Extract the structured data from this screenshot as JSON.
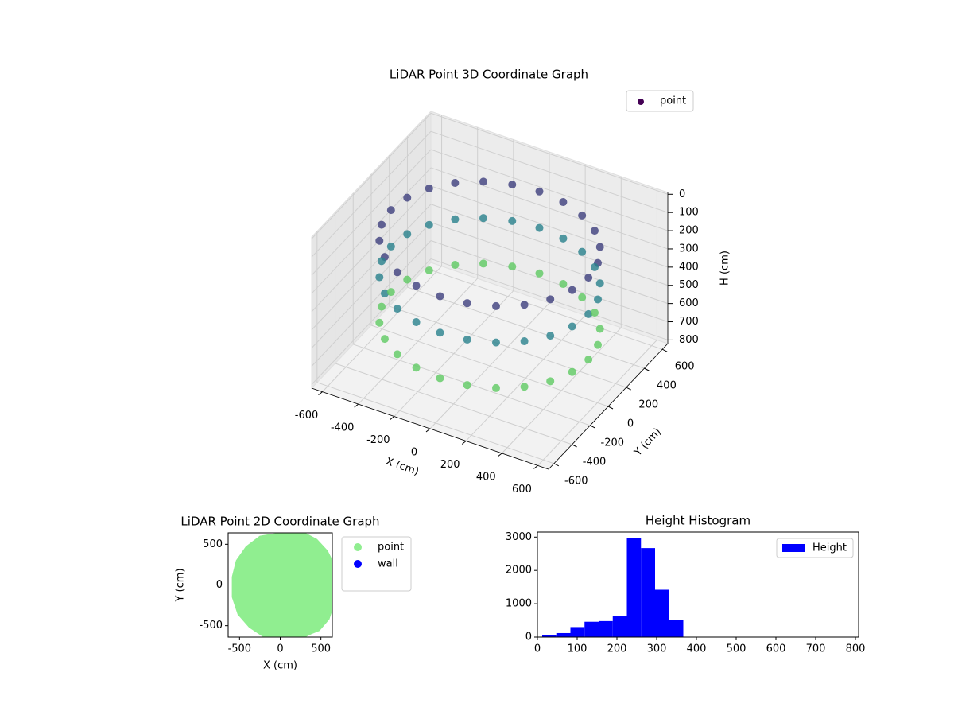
{
  "chart_data": [
    {
      "type": "scatter3d",
      "title": "LiDAR Point 3D Coordinate Graph",
      "xlabel": "X (cm)",
      "ylabel": "Y (cm)",
      "zlabel": "H (cm)",
      "xlim": [
        -660,
        660
      ],
      "ylim": [
        -660,
        660
      ],
      "zlim": [
        820,
        -10
      ],
      "xticks": [
        -600,
        -400,
        -200,
        0,
        200,
        400,
        600
      ],
      "yticks": [
        -600,
        -400,
        -200,
        0,
        200,
        400,
        600
      ],
      "zticks": [
        0,
        100,
        200,
        300,
        400,
        500,
        600,
        700,
        800
      ],
      "colormap": "viridis",
      "clim": [
        0,
        800
      ],
      "legend": "upper right",
      "grid": true,
      "series": [
        {
          "name": "point",
          "color": "#440154",
          "x": [
            550,
            531,
            476,
            389,
            275,
            142,
            0,
            -142,
            -275,
            -389,
            -476,
            -531,
            -550,
            -531,
            -476,
            -389,
            -275,
            -142,
            0,
            142,
            275,
            389,
            476,
            531,
            550,
            531,
            476,
            389,
            275,
            142,
            0,
            -142,
            -275,
            -389,
            -476,
            -531,
            -550,
            -531,
            -476,
            -389,
            -275,
            -142,
            0,
            142,
            275,
            389,
            476,
            531,
            550,
            531,
            476,
            389,
            275,
            142,
            0,
            -142,
            -275,
            -389,
            -476,
            -531,
            -550,
            -531,
            -476,
            -389,
            -275,
            -142,
            0,
            142,
            275,
            389,
            476,
            531
          ],
          "y": [
            0,
            142,
            275,
            389,
            476,
            531,
            550,
            531,
            476,
            389,
            275,
            142,
            0,
            -142,
            -275,
            -389,
            -476,
            -531,
            -550,
            -531,
            -476,
            -389,
            -275,
            -142,
            0,
            142,
            275,
            389,
            476,
            531,
            550,
            531,
            476,
            389,
            275,
            142,
            0,
            -142,
            -275,
            -389,
            -476,
            -531,
            -550,
            -531,
            -476,
            -389,
            -275,
            -142,
            0,
            142,
            275,
            389,
            476,
            531,
            550,
            531,
            476,
            389,
            275,
            142,
            0,
            -142,
            -275,
            -389,
            -476,
            -531,
            -550,
            -531,
            -476,
            -389,
            -275,
            -142
          ],
          "z": [
            150,
            150,
            150,
            150,
            150,
            150,
            150,
            150,
            150,
            150,
            150,
            150,
            150,
            150,
            150,
            150,
            150,
            150,
            150,
            150,
            150,
            150,
            150,
            150,
            350,
            350,
            350,
            350,
            350,
            350,
            350,
            350,
            350,
            350,
            350,
            350,
            350,
            350,
            350,
            350,
            350,
            350,
            350,
            350,
            350,
            350,
            350,
            350,
            600,
            600,
            600,
            600,
            600,
            600,
            600,
            600,
            600,
            600,
            600,
            600,
            600,
            600,
            600,
            600,
            600,
            600,
            600,
            600,
            600,
            600,
            600,
            600
          ]
        }
      ]
    },
    {
      "type": "scatter",
      "title": "LiDAR Point 2D Coordinate Graph",
      "xlabel": "X (cm)",
      "ylabel": "Y (cm)",
      "xlim": [
        -640,
        640
      ],
      "ylim": [
        -640,
        640
      ],
      "xticks": [
        -500,
        0,
        500
      ],
      "yticks": [
        -500,
        0,
        500
      ],
      "legend": "outside right",
      "series": [
        {
          "name": "point",
          "color": "#90ee90",
          "x": [
            0,
            300,
            450,
            580,
            640,
            640,
            600,
            480,
            380,
            300,
            -200,
            -380,
            -520,
            -590,
            -590,
            -540,
            -420,
            -250
          ],
          "y": [
            640,
            640,
            560,
            420,
            300,
            -300,
            -420,
            -560,
            -600,
            -640,
            -640,
            -520,
            -360,
            -150,
            100,
            300,
            470,
            600
          ]
        },
        {
          "name": "wall",
          "color": "#0000ff",
          "x": [],
          "y": []
        }
      ]
    },
    {
      "type": "histogram",
      "title": "Height Histogram",
      "xlim": [
        0,
        808
      ],
      "ylim": [
        0,
        3150
      ],
      "xticks": [
        0,
        100,
        200,
        300,
        400,
        500,
        600,
        700,
        800
      ],
      "yticks": [
        0,
        1000,
        2000,
        3000
      ],
      "legend": "upper right",
      "series": [
        {
          "name": "Height",
          "color": "#0000ff",
          "bins": [
            12,
            47.5,
            83,
            118.5,
            154,
            189.5,
            225,
            260.5,
            296,
            331.5,
            367,
            402.5,
            438,
            473.5,
            509,
            544.5,
            580,
            615.5,
            651,
            686.5,
            722,
            757.5,
            793
          ],
          "values": [
            50,
            120,
            300,
            460,
            480,
            620,
            2980,
            2670,
            1420,
            520,
            0,
            0,
            0,
            0,
            0,
            0,
            0,
            0,
            0,
            0,
            0,
            0
          ]
        }
      ]
    }
  ]
}
